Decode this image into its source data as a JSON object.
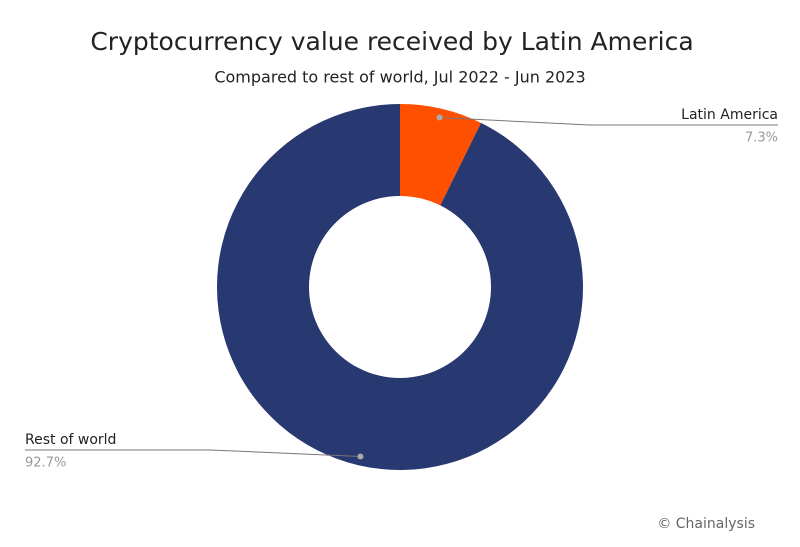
{
  "chart_data": {
    "type": "donut",
    "title": "Cryptocurrency value received by Latin America",
    "subtitle": "Compared to rest of world, Jul 2022 - Jun 2023",
    "categories": [
      "Latin America",
      "Rest of world"
    ],
    "values": [
      7.3,
      92.7
    ],
    "value_labels": [
      "7.3%",
      "92.7%"
    ],
    "colors": [
      "#ff5000",
      "#283870"
    ],
    "credit": "© Chainalysis"
  }
}
